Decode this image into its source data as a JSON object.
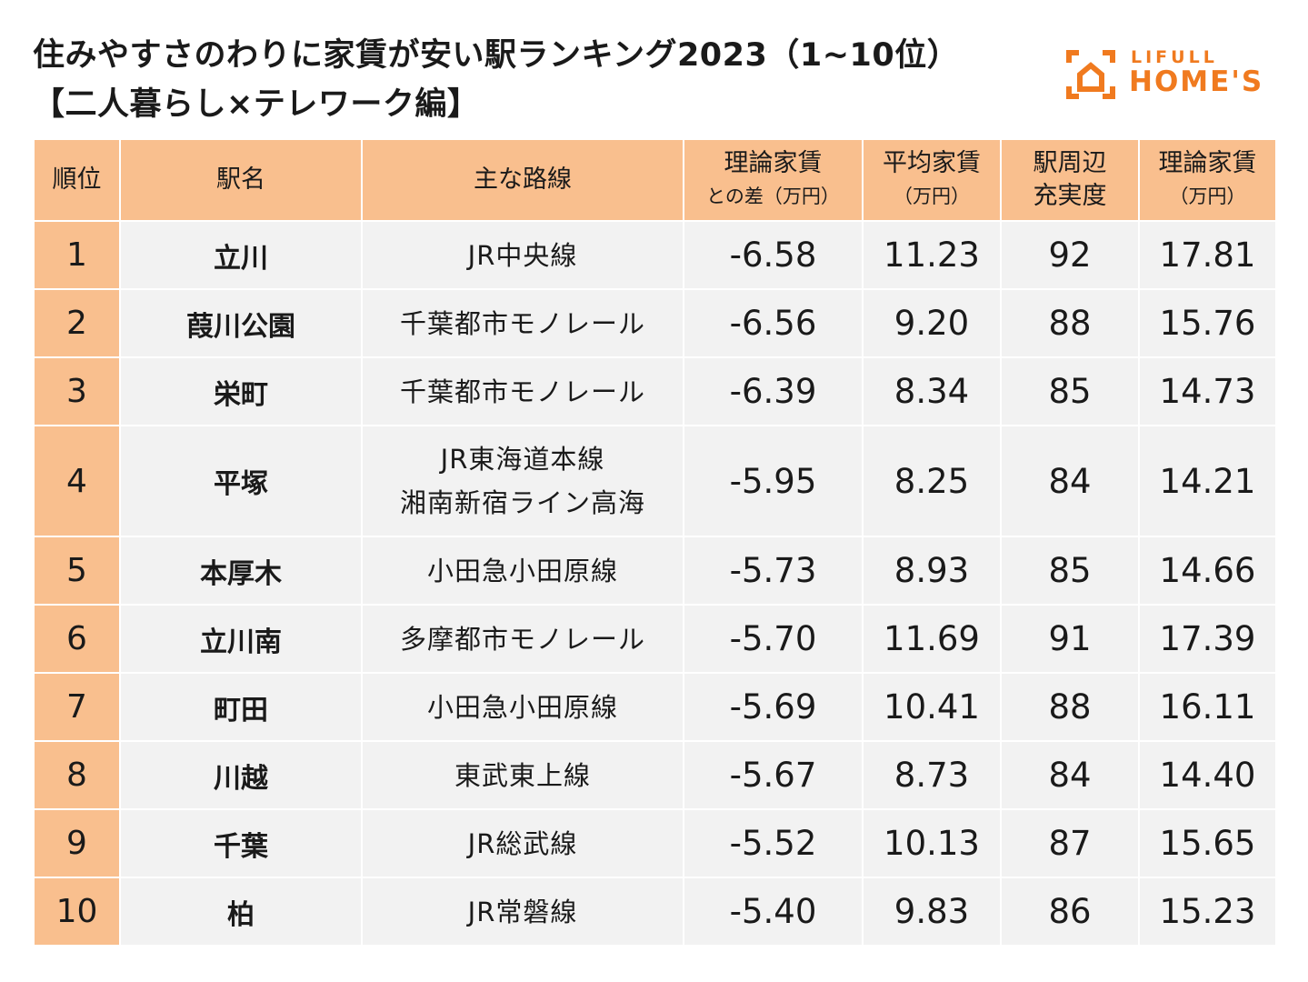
{
  "header": {
    "title_line1": "住みやすさのわりに家賃が安い駅ランキング2023（1~10位）",
    "title_line2": "【二人暮らし×テレワーク編】"
  },
  "logo": {
    "top_text": "LIFULL",
    "bottom_text": "HOME'S",
    "color": "#f07a1f"
  },
  "table": {
    "columns": {
      "rank": "順位",
      "station": "駅名",
      "line": "主な路線",
      "diff_1": "理論家賃",
      "diff_2": "との差（万円）",
      "avg_1": "平均家賃",
      "avg_2": "（万円）",
      "score_1": "駅周辺",
      "score_2": "充実度",
      "theory_1": "理論家賃",
      "theory_2": "（万円）"
    },
    "rows": [
      {
        "rank": "1",
        "station": "立川",
        "line": "JR中央線",
        "line2": "",
        "diff": "-6.58",
        "avg": "11.23",
        "score": "92",
        "theory": "17.81"
      },
      {
        "rank": "2",
        "station": "葭川公園",
        "line": "千葉都市モノレール",
        "line2": "",
        "diff": "-6.56",
        "avg": "9.20",
        "score": "88",
        "theory": "15.76"
      },
      {
        "rank": "3",
        "station": "栄町",
        "line": "千葉都市モノレール",
        "line2": "",
        "diff": "-6.39",
        "avg": "8.34",
        "score": "85",
        "theory": "14.73"
      },
      {
        "rank": "4",
        "station": "平塚",
        "line": "JR東海道本線",
        "line2": "湘南新宿ライン高海",
        "diff": "-5.95",
        "avg": "8.25",
        "score": "84",
        "theory": "14.21"
      },
      {
        "rank": "5",
        "station": "本厚木",
        "line": "小田急小田原線",
        "line2": "",
        "diff": "-5.73",
        "avg": "8.93",
        "score": "85",
        "theory": "14.66"
      },
      {
        "rank": "6",
        "station": "立川南",
        "line": "多摩都市モノレール",
        "line2": "",
        "diff": "-5.70",
        "avg": "11.69",
        "score": "91",
        "theory": "17.39"
      },
      {
        "rank": "7",
        "station": "町田",
        "line": "小田急小田原線",
        "line2": "",
        "diff": "-5.69",
        "avg": "10.41",
        "score": "88",
        "theory": "16.11"
      },
      {
        "rank": "8",
        "station": "川越",
        "line": "東武東上線",
        "line2": "",
        "diff": "-5.67",
        "avg": "8.73",
        "score": "84",
        "theory": "14.40"
      },
      {
        "rank": "9",
        "station": "千葉",
        "line": "JR総武線",
        "line2": "",
        "diff": "-5.52",
        "avg": "10.13",
        "score": "87",
        "theory": "15.65"
      },
      {
        "rank": "10",
        "station": "柏",
        "line": "JR常磐線",
        "line2": "",
        "diff": "-5.40",
        "avg": "9.83",
        "score": "86",
        "theory": "15.23"
      }
    ]
  }
}
